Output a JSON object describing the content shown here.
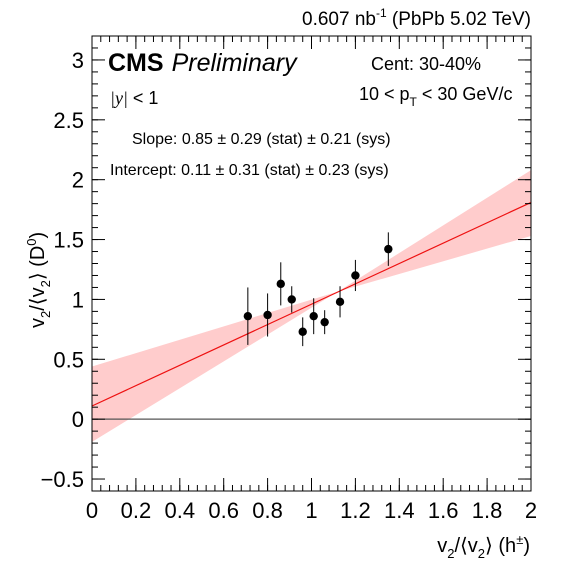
{
  "header": {
    "lumi_value": "0.607 nb",
    "lumi_exp": "-1",
    "lumi_system": " (PbPb 5.02 TeV)"
  },
  "cms": {
    "bold": "CMS",
    "italic": "Preliminary"
  },
  "selection": {
    "y_sym": "|y|",
    "y_rest": " < 1",
    "cent": "Cent: 30-40%",
    "pt_pre": "10 < p",
    "pt_sub": "T",
    "pt_post": " < 30 GeV/c"
  },
  "fit_text": {
    "slope": "Slope: 0.85 ± 0.29 (stat) ± 0.21 (sys)",
    "intercept": "Intercept: 0.11 ± 0.31 (stat) ± 0.23 (sys)"
  },
  "axes": {
    "x_label_v": "v",
    "x_label_sub": "2",
    "x_label_mid": "/⟨v",
    "x_label_sub2": "2",
    "x_label_end": "⟩ (h",
    "x_label_sup": "±",
    "x_label_close": ")",
    "y_label_v": "v",
    "y_label_sub": "2",
    "y_label_mid": "/⟨v",
    "y_label_sub2": "2",
    "y_label_end": "⟩ (D",
    "y_label_sup": "0",
    "y_label_close": ")"
  },
  "colors": {
    "fit_line": "#ee1111",
    "band": "#ffcccc",
    "points": "#000000",
    "zero_line": "#555555"
  },
  "chart_data": {
    "type": "scatter",
    "xlim": [
      0,
      2
    ],
    "ylim": [
      -0.6,
      3.2
    ],
    "x_ticks": [
      0,
      0.2,
      0.4,
      0.6,
      0.8,
      1,
      1.2,
      1.4,
      1.6,
      1.8,
      2
    ],
    "x_tick_labels": [
      "0",
      "0.2",
      "0.4",
      "0.6",
      "0.8",
      "1",
      "1.2",
      "1.4",
      "1.6",
      "1.8",
      "2"
    ],
    "y_ticks": [
      -0.5,
      0,
      0.5,
      1,
      1.5,
      2,
      2.5,
      3
    ],
    "y_tick_labels": [
      "−0.5",
      "0",
      "0.5",
      "1",
      "1.5",
      "2",
      "2.5",
      "3"
    ],
    "points": [
      {
        "x": 0.71,
        "y": 0.86,
        "err": 0.24
      },
      {
        "x": 0.8,
        "y": 0.87,
        "err": 0.18
      },
      {
        "x": 0.86,
        "y": 1.13,
        "err": 0.18
      },
      {
        "x": 0.91,
        "y": 1.0,
        "err": 0.11
      },
      {
        "x": 0.96,
        "y": 0.73,
        "err": 0.12
      },
      {
        "x": 1.01,
        "y": 0.86,
        "err": 0.15
      },
      {
        "x": 1.06,
        "y": 0.81,
        "err": 0.1
      },
      {
        "x": 1.13,
        "y": 0.98,
        "err": 0.13
      },
      {
        "x": 1.2,
        "y": 1.2,
        "err": 0.13
      },
      {
        "x": 1.35,
        "y": 1.42,
        "err": 0.14
      }
    ],
    "fit": {
      "slope": 0.85,
      "intercept": 0.11
    },
    "band": {
      "upper": [
        [
          0,
          0.44
        ],
        [
          2,
          2.08
        ]
      ],
      "center": [
        [
          1.12,
          1.065
        ]
      ],
      "lower": [
        [
          0,
          -0.19
        ],
        [
          2,
          1.53
        ]
      ]
    },
    "reference_line_y": 0
  }
}
